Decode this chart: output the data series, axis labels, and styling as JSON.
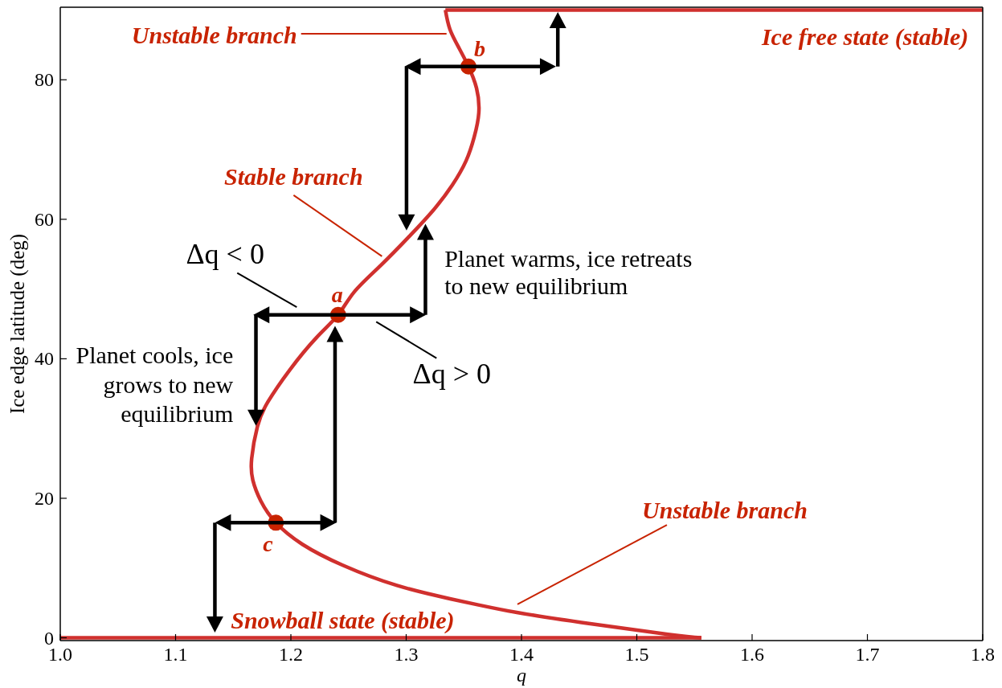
{
  "chart_data": {
    "type": "line",
    "xlabel": "q",
    "ylabel": "Ice edge latitude (deg)",
    "xlim": [
      1.0,
      1.8
    ],
    "xticks": [
      {
        "value": 1.0,
        "label": "1.0"
      },
      1.1,
      1.2,
      1.3,
      1.4,
      1.5,
      1.6,
      1.7,
      {
        "value": 1.8,
        "label": "1.8"
      }
    ],
    "ylim": [
      -0.4,
      90.4
    ],
    "yticks": [
      0,
      20,
      40,
      60,
      80
    ],
    "series": [
      {
        "color": "#d0302e",
        "x": [
          1.0,
          1.556
        ],
        "values": [
          0,
          0
        ]
      },
      {
        "color": "#d0302e",
        "x": [
          1.334,
          1.8
        ],
        "values": [
          90,
          90
        ]
      },
      {
        "color": "#d0302e",
        "x": [
          1.334,
          1.338,
          1.346,
          1.354,
          1.361,
          1.363,
          1.359,
          1.352,
          1.34,
          1.324,
          1.303,
          1.278,
          1.255,
          1.241,
          1.222,
          1.199,
          1.18,
          1.171,
          1.166,
          1.167,
          1.174,
          1.187,
          1.21,
          1.245,
          1.292,
          1.338,
          1.366,
          1.397,
          1.452,
          1.527,
          1.556
        ],
        "values": [
          90,
          87.2,
          84.5,
          81.9,
          78.8,
          75.3,
          71.8,
          68.4,
          64.9,
          61.4,
          57.6,
          53.4,
          49.6,
          46.3,
          43.0,
          38.4,
          33.8,
          30.3,
          25.7,
          22.6,
          19.6,
          16.5,
          13.4,
          10.4,
          7.5,
          5.6,
          4.6,
          3.6,
          2.2,
          0.5,
          0
        ]
      },
      {
        "type": "scatter",
        "color": "#c82300",
        "x": [
          1.354,
          1.241,
          1.187
        ],
        "values": [
          81.9,
          46.3,
          16.5
        ]
      }
    ],
    "annotations": [
      {
        "text": "Unstable branch",
        "x": 1.335,
        "y": 86.6
      },
      "Ice free state (stable)",
      {
        "text": "b",
        "x": 1.354,
        "y": 81.9
      },
      {
        "text": "Stable branch",
        "x": 1.279,
        "y": 54.7
      },
      "Δq < 0",
      "Planet warms, ice retreats\nto new equilibrium",
      {
        "text": "a",
        "x": 1.241,
        "y": 46.3
      },
      "Δq > 0",
      "Planet cools, ice\ngrows to new\nequilibrium",
      {
        "text": "c",
        "x": 1.187,
        "y": 16.5
      },
      "Unstable branch",
      "Snowball state (stable)"
    ]
  }
}
